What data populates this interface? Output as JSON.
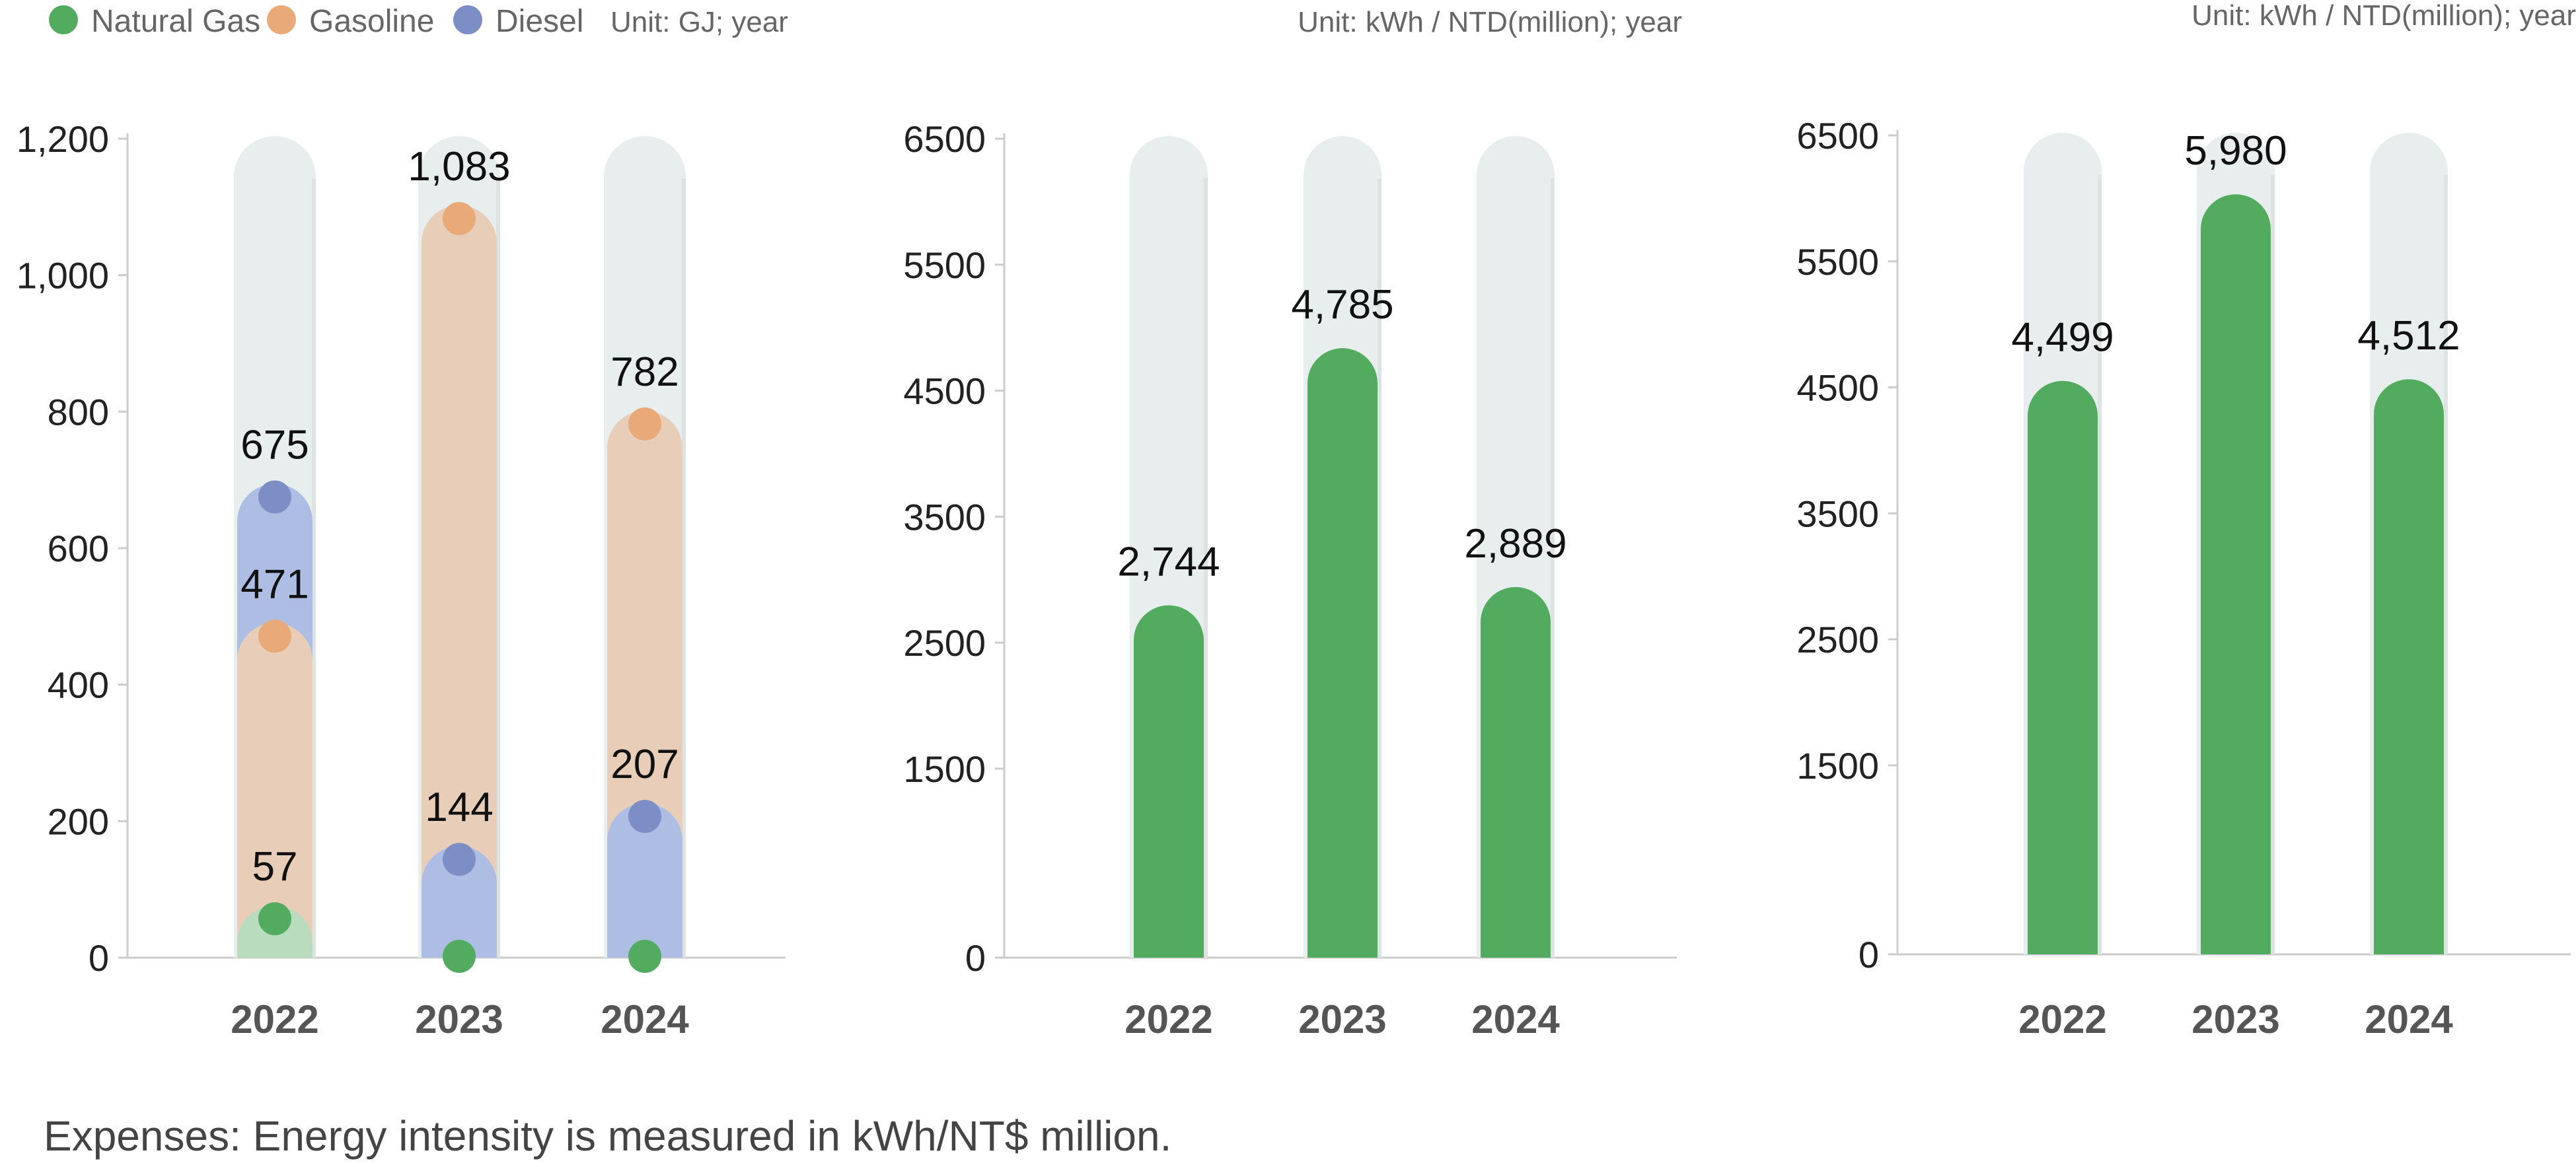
{
  "legend": {
    "items": [
      {
        "label": "Natural Gas",
        "color": "#52ab5e"
      },
      {
        "label": "Gasoline",
        "color": "#e9a978"
      },
      {
        "label": "Diesel",
        "color": "#7d8ec6"
      }
    ],
    "unit": "Unit: GJ; year"
  },
  "footnote": "Expenses: Energy intensity is measured in kWh/NT$ million.",
  "colors": {
    "track": "#e8eeed",
    "green": "#52ab5e",
    "green_light": "#b8dcbd",
    "gasoline_dot": "#e9a978",
    "gasoline_bar": "#e8cdb8",
    "diesel_dot": "#7d8ec6",
    "diesel_bar": "#adbde3",
    "axis": "#cccccc",
    "tick_text": "#222222",
    "category_text": "#555555"
  },
  "chart_data": [
    {
      "type": "bar",
      "unit_label": "Unit: GJ; year",
      "categories": [
        "2022",
        "2023",
        "2024"
      ],
      "series": [
        {
          "name": "Natural Gas",
          "values": [
            57,
            0,
            0
          ]
        },
        {
          "name": "Gasoline",
          "values": [
            471,
            1083,
            782
          ]
        },
        {
          "name": "Diesel",
          "values": [
            675,
            144,
            207
          ]
        }
      ],
      "data_labels": [
        {
          "category": "2022",
          "series": "Natural Gas",
          "text": "57"
        },
        {
          "category": "2022",
          "series": "Gasoline",
          "text": "471"
        },
        {
          "category": "2022",
          "series": "Diesel",
          "text": "675"
        },
        {
          "category": "2023",
          "series": "Gasoline",
          "text": "1,083"
        },
        {
          "category": "2023",
          "series": "Diesel",
          "text": "144"
        },
        {
          "category": "2024",
          "series": "Gasoline",
          "text": "782"
        },
        {
          "category": "2024",
          "series": "Diesel",
          "text": "207"
        }
      ],
      "ylim": [
        0,
        1200
      ],
      "yticks": [
        0,
        200,
        400,
        600,
        800,
        1000,
        1200
      ],
      "ytick_labels": [
        "0",
        "200",
        "400",
        "600",
        "800",
        "1,000",
        "1,200"
      ],
      "grid": false
    },
    {
      "type": "bar",
      "unit_label": "Unit: kWh / NTD(million); year",
      "categories": [
        "2022",
        "2023",
        "2024"
      ],
      "values": [
        2744,
        4785,
        2889
      ],
      "value_labels": [
        "2,744",
        "4,785",
        "2,889"
      ],
      "ylim": [
        0,
        6500
      ],
      "yticks": [
        0,
        1500,
        2500,
        3500,
        4500,
        5500,
        6500
      ],
      "ytick_labels": [
        "0",
        "1500",
        "2500",
        "3500",
        "4500",
        "5500",
        "6500"
      ],
      "grid": false
    },
    {
      "type": "bar",
      "unit_label": "Unit: kWh / NTD(million); year",
      "categories": [
        "2022",
        "2023",
        "2024"
      ],
      "values": [
        4499,
        5980,
        4512
      ],
      "value_labels": [
        "4,499",
        "5,980",
        "4,512"
      ],
      "ylim": [
        0,
        6500
      ],
      "yticks": [
        0,
        1500,
        2500,
        3500,
        4500,
        5500,
        6500
      ],
      "ytick_labels": [
        "0",
        "1500",
        "2500",
        "3500",
        "4500",
        "5500",
        "6500"
      ],
      "grid": false
    }
  ]
}
